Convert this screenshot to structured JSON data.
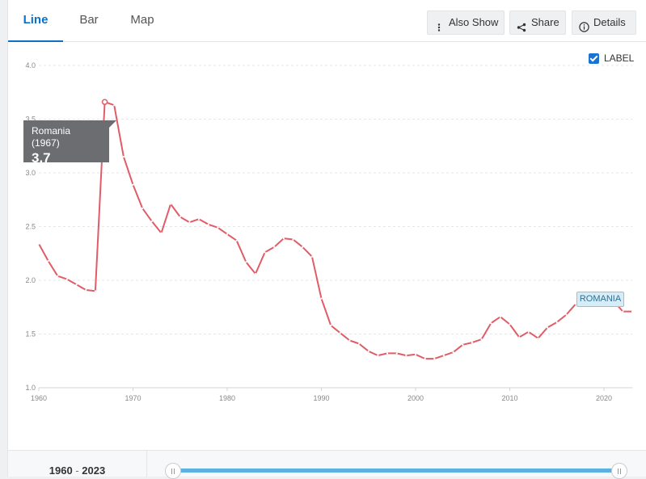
{
  "tabs": [
    {
      "label": "Line",
      "active": true
    },
    {
      "label": "Bar",
      "active": false
    },
    {
      "label": "Map",
      "active": false
    }
  ],
  "toolbar": {
    "also_show": "Also Show",
    "share": "Share",
    "details": "Details"
  },
  "label_toggle": {
    "label": "LABEL",
    "checked": true
  },
  "tooltip": {
    "name": "Romania (1967)",
    "value": "3.7"
  },
  "series_tag": "ROMANIA",
  "range": {
    "start": "1960",
    "sep": "-",
    "end": "2023"
  },
  "colors": {
    "series": "#e05c67",
    "accent": "#0b71c8",
    "slider": "#5bb0e4"
  },
  "chart_data": {
    "type": "line",
    "title": "",
    "xlabel": "",
    "ylabel": "",
    "xlim": [
      1960,
      2023
    ],
    "ylim": [
      1.0,
      4.0
    ],
    "yticks": [
      "1.0",
      "1.5",
      "2.0",
      "2.5",
      "3.0",
      "3.5",
      "4.0"
    ],
    "xticks": [
      "1960",
      "1970",
      "1980",
      "1990",
      "2000",
      "2010",
      "2020"
    ],
    "grid": true,
    "legend": "none",
    "highlight": {
      "x": 1967,
      "y": 3.66
    },
    "series": [
      {
        "name": "ROMANIA",
        "x": [
          1960,
          1961,
          1962,
          1963,
          1964,
          1965,
          1966,
          1967,
          1968,
          1969,
          1970,
          1971,
          1972,
          1973,
          1974,
          1975,
          1976,
          1977,
          1978,
          1979,
          1980,
          1981,
          1982,
          1983,
          1984,
          1985,
          1986,
          1987,
          1988,
          1989,
          1990,
          1991,
          1992,
          1993,
          1994,
          1995,
          1996,
          1997,
          1998,
          1999,
          2000,
          2001,
          2002,
          2003,
          2004,
          2005,
          2006,
          2007,
          2008,
          2009,
          2010,
          2011,
          2012,
          2013,
          2014,
          2015,
          2016,
          2017,
          2018,
          2019,
          2020,
          2021,
          2022,
          2023
        ],
        "values": [
          2.34,
          2.18,
          2.04,
          2.01,
          1.96,
          1.91,
          1.9,
          3.66,
          3.63,
          3.15,
          2.89,
          2.67,
          2.55,
          2.44,
          2.71,
          2.59,
          2.54,
          2.57,
          2.52,
          2.49,
          2.43,
          2.37,
          2.17,
          2.06,
          2.26,
          2.31,
          2.39,
          2.38,
          2.31,
          2.22,
          1.83,
          1.58,
          1.51,
          1.44,
          1.41,
          1.34,
          1.3,
          1.32,
          1.32,
          1.3,
          1.31,
          1.27,
          1.27,
          1.3,
          1.33,
          1.4,
          1.42,
          1.45,
          1.6,
          1.66,
          1.59,
          1.47,
          1.52,
          1.46,
          1.56,
          1.61,
          1.68,
          1.78,
          1.76,
          1.77,
          1.8,
          1.81,
          1.71,
          1.71
        ]
      }
    ]
  }
}
